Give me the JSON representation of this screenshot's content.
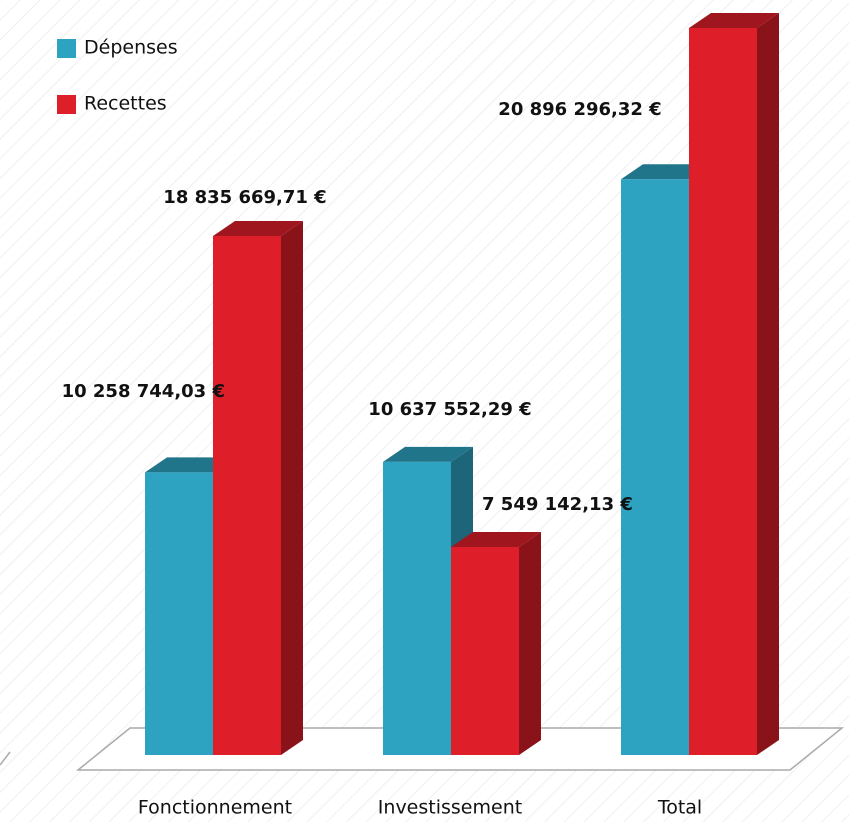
{
  "chart_data": {
    "type": "bar3d",
    "categories": [
      "Fonctionnement",
      "Investissement",
      "Total"
    ],
    "series": [
      {
        "name": "Dépenses",
        "color": "#2ea3c1",
        "values": [
          10258744.03,
          10637552.29,
          20896296.32
        ],
        "value_labels": [
          "10 258 744,03 €",
          "10 637 552,29 €",
          "20 896 296,32 €"
        ]
      },
      {
        "name": "Recettes",
        "color": "#de1f2a",
        "values": [
          18835669.71,
          7549142.13,
          26384811.84
        ],
        "value_labels": [
          "18 835 669,71 €",
          "7 549 142,13 €",
          null
        ]
      }
    ],
    "legend": "top-left"
  }
}
